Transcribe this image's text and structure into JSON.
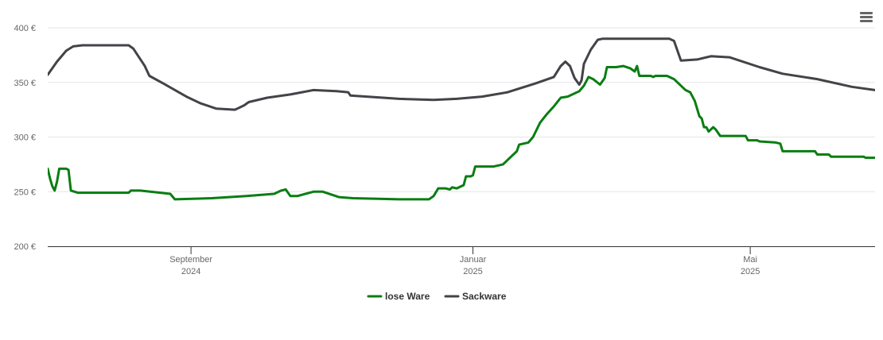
{
  "chart_data": {
    "type": "line",
    "currency_suffix": " €",
    "ylim": [
      200,
      400
    ],
    "yticks": [
      200,
      250,
      300,
      350,
      400
    ],
    "xlim": [
      "2024-07-01",
      "2025-06-24"
    ],
    "grid": true,
    "legend_position": "bottom-center",
    "x_ticks": [
      {
        "date": "2024-09-01",
        "label": "September",
        "year": "2024"
      },
      {
        "date": "2025-01-01",
        "label": "Januar",
        "year": "2025"
      },
      {
        "date": "2025-05-01",
        "label": "Mai",
        "year": "2025"
      }
    ],
    "series": [
      {
        "name": "lose Ware",
        "color": "#0a7d12",
        "points": [
          [
            "2024-07-01",
            271
          ],
          [
            "2024-07-02",
            262
          ],
          [
            "2024-07-03",
            255
          ],
          [
            "2024-07-04",
            251
          ],
          [
            "2024-07-05",
            259
          ],
          [
            "2024-07-06",
            271
          ],
          [
            "2024-07-09",
            271
          ],
          [
            "2024-07-10",
            270
          ],
          [
            "2024-07-11",
            251
          ],
          [
            "2024-07-14",
            249
          ],
          [
            "2024-07-31",
            249
          ],
          [
            "2024-08-05",
            249
          ],
          [
            "2024-08-06",
            251
          ],
          [
            "2024-08-10",
            251
          ],
          [
            "2024-08-23",
            248
          ],
          [
            "2024-08-25",
            243
          ],
          [
            "2024-09-10",
            244
          ],
          [
            "2024-09-25",
            246
          ],
          [
            "2024-10-07",
            248
          ],
          [
            "2024-10-10",
            251
          ],
          [
            "2024-10-12",
            252
          ],
          [
            "2024-10-14",
            246
          ],
          [
            "2024-10-17",
            246
          ],
          [
            "2024-10-24",
            250
          ],
          [
            "2024-10-28",
            250
          ],
          [
            "2024-11-04",
            245
          ],
          [
            "2024-11-10",
            244
          ],
          [
            "2024-11-30",
            243
          ],
          [
            "2024-12-10",
            243
          ],
          [
            "2024-12-13",
            243
          ],
          [
            "2024-12-15",
            246
          ],
          [
            "2024-12-17",
            253
          ],
          [
            "2024-12-20",
            253
          ],
          [
            "2024-12-22",
            252
          ],
          [
            "2024-12-23",
            254
          ],
          [
            "2024-12-25",
            253
          ],
          [
            "2024-12-28",
            256
          ],
          [
            "2024-12-29",
            264
          ],
          [
            "2024-12-31",
            264
          ],
          [
            "2025-01-01",
            265
          ],
          [
            "2025-01-02",
            273
          ],
          [
            "2025-01-10",
            273
          ],
          [
            "2025-01-14",
            275
          ],
          [
            "2025-01-18",
            283
          ],
          [
            "2025-01-20",
            287
          ],
          [
            "2025-01-21",
            293
          ],
          [
            "2025-01-25",
            295
          ],
          [
            "2025-01-27",
            300
          ],
          [
            "2025-01-30",
            313
          ],
          [
            "2025-02-02",
            321
          ],
          [
            "2025-02-05",
            328
          ],
          [
            "2025-02-08",
            336
          ],
          [
            "2025-02-11",
            337
          ],
          [
            "2025-02-16",
            342
          ],
          [
            "2025-02-18",
            347
          ],
          [
            "2025-02-20",
            355
          ],
          [
            "2025-02-22",
            353
          ],
          [
            "2025-02-25",
            348
          ],
          [
            "2025-02-27",
            354
          ],
          [
            "2025-02-28",
            364
          ],
          [
            "2025-03-04",
            364
          ],
          [
            "2025-03-07",
            365
          ],
          [
            "2025-03-10",
            363
          ],
          [
            "2025-03-12",
            360
          ],
          [
            "2025-03-13",
            365
          ],
          [
            "2025-03-14",
            356
          ],
          [
            "2025-03-19",
            356
          ],
          [
            "2025-03-20",
            355
          ],
          [
            "2025-03-21",
            356
          ],
          [
            "2025-03-26",
            356
          ],
          [
            "2025-03-29",
            353
          ],
          [
            "2025-04-03",
            343
          ],
          [
            "2025-04-05",
            341
          ],
          [
            "2025-04-07",
            333
          ],
          [
            "2025-04-09",
            319
          ],
          [
            "2025-04-10",
            317
          ],
          [
            "2025-04-11",
            309
          ],
          [
            "2025-04-12",
            309
          ],
          [
            "2025-04-13",
            305
          ],
          [
            "2025-04-15",
            309
          ],
          [
            "2025-04-16",
            307
          ],
          [
            "2025-04-18",
            301
          ],
          [
            "2025-04-29",
            301
          ],
          [
            "2025-04-30",
            297
          ],
          [
            "2025-05-04",
            297
          ],
          [
            "2025-05-05",
            296
          ],
          [
            "2025-05-12",
            295
          ],
          [
            "2025-05-14",
            294
          ],
          [
            "2025-05-15",
            287
          ],
          [
            "2025-05-29",
            287
          ],
          [
            "2025-05-30",
            284
          ],
          [
            "2025-06-04",
            284
          ],
          [
            "2025-06-05",
            282
          ],
          [
            "2025-06-19",
            282
          ],
          [
            "2025-06-20",
            281
          ],
          [
            "2025-06-24",
            281
          ],
          [
            "2025-06-25",
            280
          ],
          [
            "2025-06-29",
            280
          ],
          [
            "2025-07-04",
            280
          ]
        ]
      },
      {
        "name": "Sackware",
        "color": "#434348",
        "points": [
          [
            "2024-07-01",
            357
          ],
          [
            "2024-07-05",
            369
          ],
          [
            "2024-07-09",
            379
          ],
          [
            "2024-07-12",
            383
          ],
          [
            "2024-07-16",
            384
          ],
          [
            "2024-08-05",
            384
          ],
          [
            "2024-08-07",
            381
          ],
          [
            "2024-08-12",
            365
          ],
          [
            "2024-08-14",
            356
          ],
          [
            "2024-08-20",
            349
          ],
          [
            "2024-08-30",
            337
          ],
          [
            "2024-09-05",
            331
          ],
          [
            "2024-09-12",
            326
          ],
          [
            "2024-09-20",
            325
          ],
          [
            "2024-09-21",
            326
          ],
          [
            "2024-09-24",
            329
          ],
          [
            "2024-09-26",
            332
          ],
          [
            "2024-10-04",
            336
          ],
          [
            "2024-10-14",
            339
          ],
          [
            "2024-10-24",
            343
          ],
          [
            "2024-11-03",
            342
          ],
          [
            "2024-11-08",
            341
          ],
          [
            "2024-11-09",
            338
          ],
          [
            "2024-11-30",
            335
          ],
          [
            "2024-12-15",
            334
          ],
          [
            "2024-12-25",
            335
          ],
          [
            "2025-01-05",
            337
          ],
          [
            "2025-01-16",
            341
          ],
          [
            "2025-01-28",
            349
          ],
          [
            "2025-02-05",
            355
          ],
          [
            "2025-02-08",
            365
          ],
          [
            "2025-02-10",
            369
          ],
          [
            "2025-02-12",
            365
          ],
          [
            "2025-02-14",
            354
          ],
          [
            "2025-02-16",
            348
          ],
          [
            "2025-02-17",
            352
          ],
          [
            "2025-02-18",
            367
          ],
          [
            "2025-02-21",
            380
          ],
          [
            "2025-02-24",
            389
          ],
          [
            "2025-02-26",
            390
          ],
          [
            "2025-03-27",
            390
          ],
          [
            "2025-03-29",
            388
          ],
          [
            "2025-04-01",
            370
          ],
          [
            "2025-04-08",
            371
          ],
          [
            "2025-04-14",
            374
          ],
          [
            "2025-04-22",
            373
          ],
          [
            "2025-05-05",
            364
          ],
          [
            "2025-05-15",
            358
          ],
          [
            "2025-05-30",
            353
          ],
          [
            "2025-06-14",
            346
          ],
          [
            "2025-06-24",
            343
          ],
          [
            "2025-07-04",
            342
          ],
          [
            "2025-07-05",
            339
          ]
        ]
      }
    ]
  },
  "menu": {
    "icon": "hamburger-menu-icon",
    "color": "#666666"
  }
}
